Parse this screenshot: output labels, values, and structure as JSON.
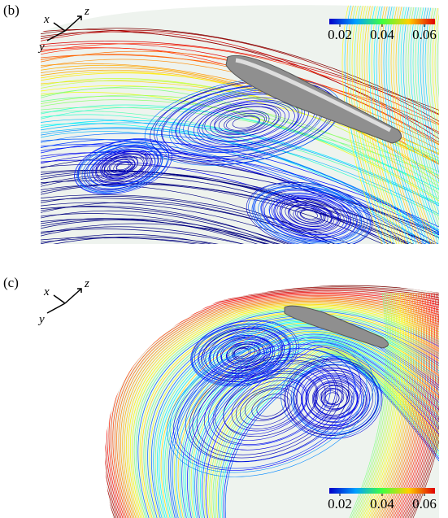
{
  "panels": [
    {
      "label": "(b)",
      "axes": {
        "x": "x",
        "y": "y",
        "z": "z"
      },
      "colorbar": {
        "clim": [
          0.015,
          0.065
        ],
        "ticks": [
          0.02,
          0.04,
          0.06
        ]
      }
    },
    {
      "label": "(c)",
      "axes": {
        "x": "x",
        "y": "y",
        "z": "z"
      },
      "colorbar": {
        "clim": [
          0.015,
          0.065
        ],
        "ticks": [
          0.02,
          0.04,
          0.06
        ]
      }
    }
  ]
}
